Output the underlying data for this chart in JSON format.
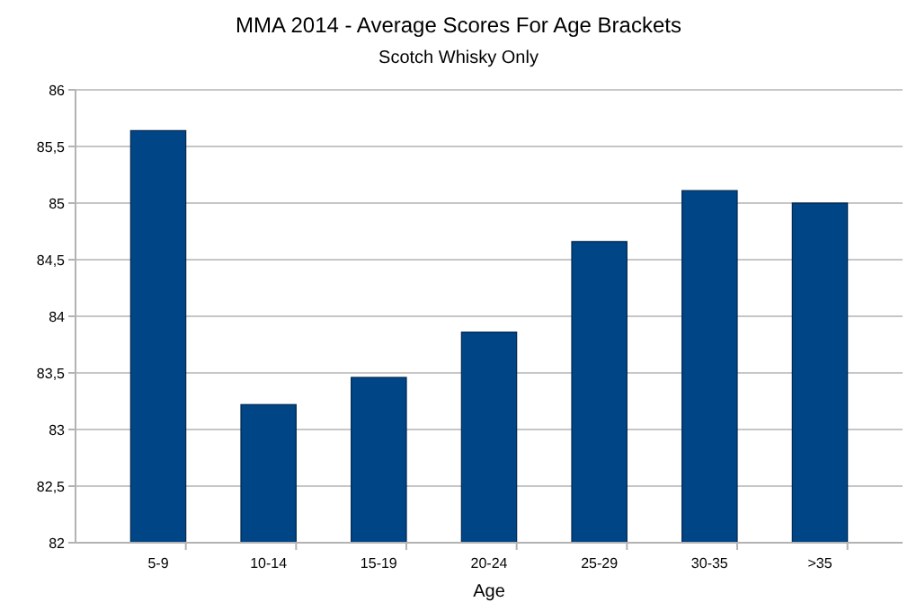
{
  "chart_data": {
    "type": "bar",
    "title": "MMA 2014 - Average Scores For Age Brackets",
    "subtitle": "Scotch Whisky Only",
    "xlabel": "Age",
    "categories": [
      "5-9",
      "10-14",
      "15-19",
      "20-24",
      "25-29",
      "30-35",
      ">35"
    ],
    "values": [
      85.64,
      83.22,
      83.46,
      83.86,
      84.66,
      85.11,
      85.0
    ],
    "color": "#004586",
    "ylim": [
      82,
      86
    ],
    "yticks": [
      82,
      {
        "value": 82.5,
        "label": "82,5"
      },
      83,
      {
        "value": 83.5,
        "label": "83,5"
      },
      84,
      {
        "value": 84.5,
        "label": "84,5"
      },
      85,
      {
        "value": 85.5,
        "label": "85,5"
      },
      86
    ],
    "grid": "y"
  }
}
